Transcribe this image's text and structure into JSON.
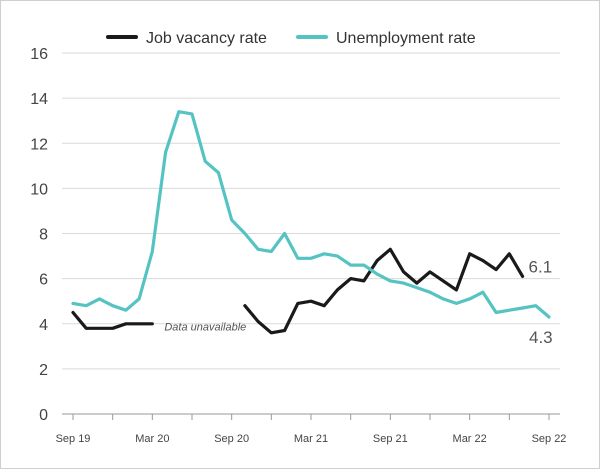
{
  "chart_data": {
    "type": "line",
    "title": "",
    "xlabel": "",
    "ylabel": "",
    "ylim": [
      0,
      16
    ],
    "yticks": [
      0,
      2,
      4,
      6,
      8,
      10,
      12,
      14,
      16
    ],
    "x_tick_labels": [
      "Sep 19",
      "Mar 20",
      "Sep 20",
      "Mar 21",
      "Sep 21",
      "Mar 22",
      "Sep 22"
    ],
    "x_start": "Sep 19",
    "x_end": "Sep 22",
    "grid": "horizontal",
    "legend_position": "top",
    "series": [
      {
        "name": "Job vacancy rate",
        "color": "#1a1a1a",
        "points": [
          [
            "Sep 19",
            4.5
          ],
          [
            "Oct 19",
            3.8
          ],
          [
            "Nov 19",
            3.8
          ],
          [
            "Dec 19",
            3.8
          ],
          [
            "Jan 20",
            4.0
          ],
          [
            "Feb 20",
            4.0
          ],
          [
            "Mar 20",
            4.0
          ],
          [
            "Oct 20",
            4.8
          ],
          [
            "Nov 20",
            4.1
          ],
          [
            "Dec 20",
            3.6
          ],
          [
            "Jan 21",
            3.7
          ],
          [
            "Feb 21",
            4.9
          ],
          [
            "Mar 21",
            5.0
          ],
          [
            "Apr 21",
            4.8
          ],
          [
            "May 21",
            5.5
          ],
          [
            "Jun 21",
            6.0
          ],
          [
            "Jul 21",
            5.9
          ],
          [
            "Aug 21",
            6.8
          ],
          [
            "Sep 21",
            7.3
          ],
          [
            "Oct 21",
            6.3
          ],
          [
            "Nov 21",
            5.8
          ],
          [
            "Dec 21",
            6.3
          ],
          [
            "Jan 22",
            5.9
          ],
          [
            "Feb 22",
            5.5
          ],
          [
            "Mar 22",
            7.1
          ],
          [
            "Apr 22",
            6.8
          ],
          [
            "May 22",
            6.4
          ],
          [
            "Jun 22",
            7.1
          ],
          [
            "Jul 22",
            6.1
          ]
        ],
        "end_label": "6.1"
      },
      {
        "name": "Unemployment rate",
        "color": "#56c3c3",
        "points": [
          [
            "Sep 19",
            4.9
          ],
          [
            "Oct 19",
            4.8
          ],
          [
            "Nov 19",
            5.1
          ],
          [
            "Dec 19",
            4.8
          ],
          [
            "Jan 20",
            4.6
          ],
          [
            "Feb 20",
            5.1
          ],
          [
            "Mar 20",
            7.2
          ],
          [
            "Apr 20",
            11.6
          ],
          [
            "May 20",
            13.4
          ],
          [
            "Jun 20",
            13.3
          ],
          [
            "Jul 20",
            11.2
          ],
          [
            "Aug 20",
            10.7
          ],
          [
            "Sep 20",
            8.6
          ],
          [
            "Oct 20",
            8.0
          ],
          [
            "Nov 20",
            7.3
          ],
          [
            "Dec 20",
            7.2
          ],
          [
            "Jan 21",
            8.0
          ],
          [
            "Feb 21",
            6.9
          ],
          [
            "Mar 21",
            6.9
          ],
          [
            "Apr 21",
            7.1
          ],
          [
            "May 21",
            7.0
          ],
          [
            "Jun 21",
            6.6
          ],
          [
            "Jul 21",
            6.6
          ],
          [
            "Aug 21",
            6.2
          ],
          [
            "Sep 21",
            5.9
          ],
          [
            "Oct 21",
            5.8
          ],
          [
            "Nov 21",
            5.6
          ],
          [
            "Dec 21",
            5.4
          ],
          [
            "Jan 22",
            5.1
          ],
          [
            "Feb 22",
            4.9
          ],
          [
            "Mar 22",
            5.1
          ],
          [
            "Apr 22",
            5.4
          ],
          [
            "May 22",
            4.5
          ],
          [
            "Jun 22",
            4.6
          ],
          [
            "Jul 22",
            4.7
          ],
          [
            "Aug 22",
            4.8
          ],
          [
            "Sep 22",
            4.3
          ]
        ],
        "end_label": "4.3"
      }
    ],
    "annotations": [
      {
        "text": "Data unavailable",
        "at": [
          "Mar 20",
          3.7
        ]
      }
    ]
  }
}
